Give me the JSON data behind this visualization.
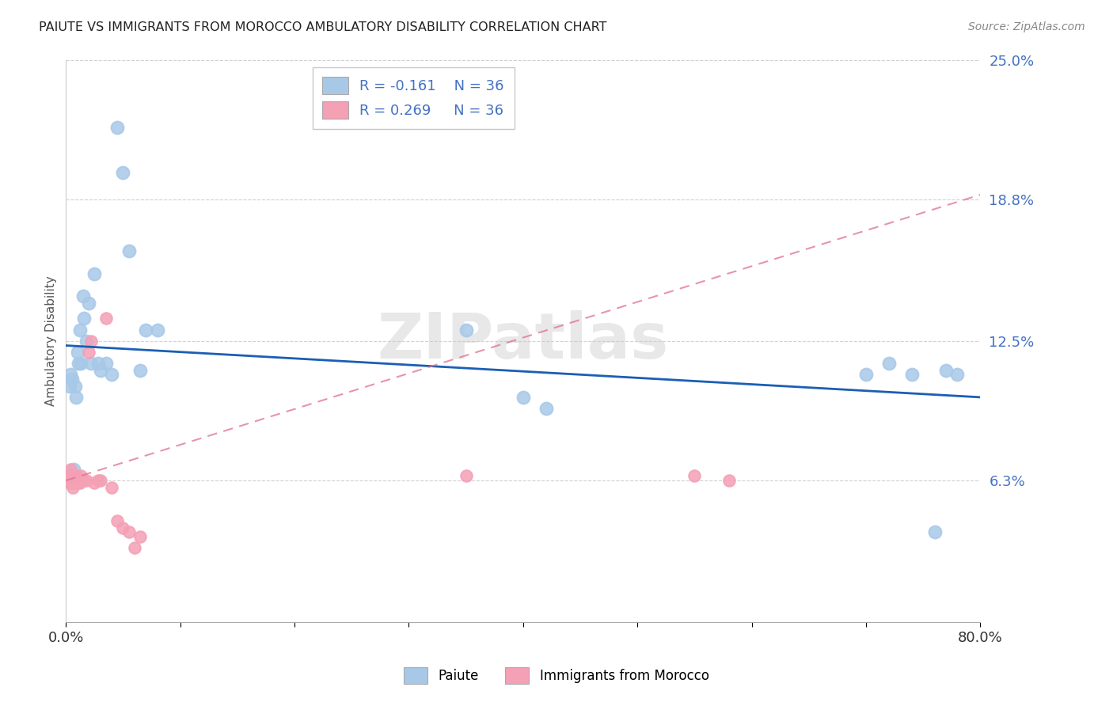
{
  "title": "PAIUTE VS IMMIGRANTS FROM MOROCCO AMBULATORY DISABILITY CORRELATION CHART",
  "source": "Source: ZipAtlas.com",
  "ylabel": "Ambulatory Disability",
  "x_min": 0.0,
  "x_max": 0.8,
  "y_min": 0.0,
  "y_max": 0.25,
  "y_ticks": [
    0.063,
    0.125,
    0.188,
    0.25
  ],
  "y_tick_labels": [
    "6.3%",
    "12.5%",
    "18.8%",
    "25.0%"
  ],
  "paiute_color": "#a8c8e8",
  "morocco_color": "#f4a0b5",
  "paiute_line_color": "#1a5fb4",
  "morocco_line_color": "#e07090",
  "legend_r_paiute": "R = -0.161",
  "legend_n_paiute": "N = 36",
  "legend_r_morocco": "R = 0.269",
  "legend_n_morocco": "N = 36",
  "watermark": "ZIPatlas",
  "paiute_x": [
    0.003,
    0.004,
    0.005,
    0.006,
    0.007,
    0.008,
    0.009,
    0.01,
    0.011,
    0.012,
    0.013,
    0.015,
    0.016,
    0.018,
    0.02,
    0.022,
    0.025,
    0.028,
    0.03,
    0.035,
    0.04,
    0.045,
    0.05,
    0.055,
    0.065,
    0.07,
    0.08,
    0.35,
    0.4,
    0.42,
    0.7,
    0.72,
    0.74,
    0.76,
    0.77,
    0.78
  ],
  "paiute_y": [
    0.105,
    0.11,
    0.108,
    0.065,
    0.068,
    0.105,
    0.1,
    0.12,
    0.115,
    0.13,
    0.115,
    0.145,
    0.135,
    0.125,
    0.142,
    0.115,
    0.155,
    0.115,
    0.112,
    0.115,
    0.11,
    0.22,
    0.2,
    0.165,
    0.112,
    0.13,
    0.13,
    0.13,
    0.1,
    0.095,
    0.11,
    0.115,
    0.11,
    0.04,
    0.112,
    0.11
  ],
  "morocco_x": [
    0.002,
    0.002,
    0.003,
    0.003,
    0.004,
    0.004,
    0.005,
    0.005,
    0.006,
    0.006,
    0.007,
    0.007,
    0.008,
    0.008,
    0.009,
    0.01,
    0.011,
    0.012,
    0.013,
    0.015,
    0.018,
    0.02,
    0.022,
    0.025,
    0.028,
    0.03,
    0.035,
    0.04,
    0.045,
    0.05,
    0.055,
    0.06,
    0.065,
    0.35,
    0.55,
    0.58
  ],
  "morocco_y": [
    0.065,
    0.063,
    0.062,
    0.065,
    0.068,
    0.064,
    0.063,
    0.065,
    0.062,
    0.06,
    0.063,
    0.065,
    0.062,
    0.063,
    0.065,
    0.062,
    0.063,
    0.062,
    0.065,
    0.063,
    0.063,
    0.12,
    0.125,
    0.062,
    0.063,
    0.063,
    0.135,
    0.06,
    0.045,
    0.042,
    0.04,
    0.033,
    0.038,
    0.065,
    0.065,
    0.063
  ],
  "paiute_line_x": [
    0.0,
    0.8
  ],
  "paiute_line_y": [
    0.123,
    0.1
  ],
  "morocco_line_x": [
    0.0,
    0.8
  ],
  "morocco_line_y": [
    0.063,
    0.19
  ]
}
